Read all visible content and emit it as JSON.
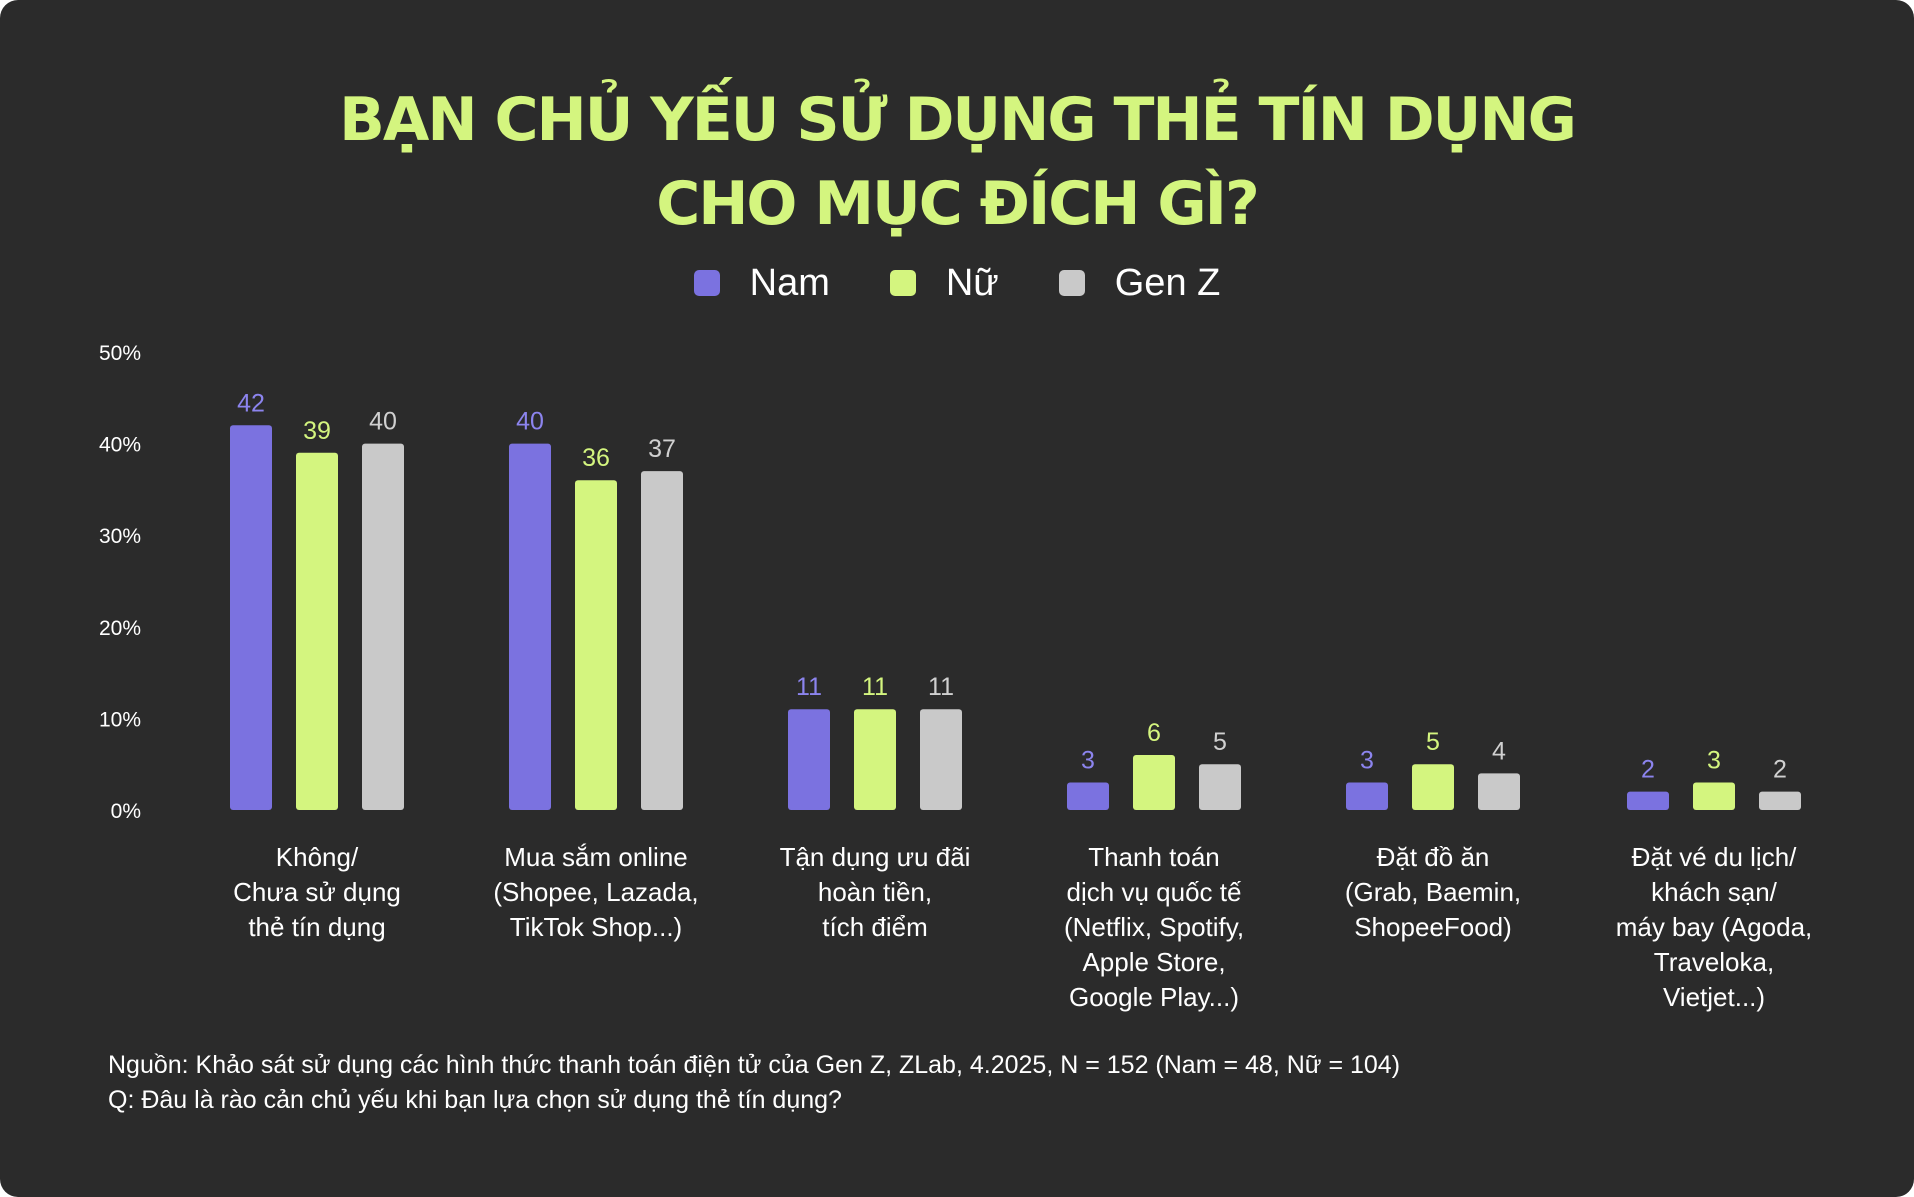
{
  "title_lines": [
    "BẠN CHỦ YẾU SỬ DỤNG THẺ TÍN DỤNG",
    "CHO MỤC ĐÍCH GÌ?"
  ],
  "legend": [
    {
      "label": "Nam",
      "color": "#7b72e0"
    },
    {
      "label": "Nữ",
      "color": "#d4f57f"
    },
    {
      "label": "Gen Z",
      "color": "#c9c9c9"
    }
  ],
  "source_lines": [
    "Nguồn: Khảo sát sử dụng các hình thức thanh toán điện tử của Gen Z, ZLab, 4.2025, N = 152 (Nam = 48, Nữ = 104)",
    "Q: Đâu là rào cản chủ yếu khi bạn lựa chọn sử dụng thẻ tín dụng?"
  ],
  "chart_data": {
    "type": "bar",
    "title": "BẠN CHỦ YẾU SỬ DỤNG THẺ TÍN DỤNG CHO MỤC ĐÍCH GÌ?",
    "ylim": [
      0,
      50
    ],
    "yticks": [
      "0%",
      "10%",
      "20%",
      "30%",
      "40%",
      "50%"
    ],
    "grid": false,
    "legend_position": "top-center",
    "categories": [
      [
        "Không/",
        "Chưa sử dụng",
        "thẻ tín dụng"
      ],
      [
        "Mua sắm online",
        "(Shopee, Lazada,",
        "TikTok Shop...)"
      ],
      [
        "Tận dụng ưu đãi",
        "hoàn tiền,",
        "tích điểm"
      ],
      [
        "Thanh toán",
        "dịch vụ quốc tế",
        "(Netflix, Spotify,",
        "Apple Store,",
        "Google Play...)"
      ],
      [
        "Đặt đồ ăn",
        "(Grab, Baemin,",
        "ShopeeFood)"
      ],
      [
        "Đặt vé du lịch/",
        "khách sạn/",
        "máy bay (Agoda,",
        "Traveloka,",
        "Vietjet...)"
      ]
    ],
    "series": [
      {
        "name": "Nam",
        "color": "#7b72e0",
        "values": [
          42,
          40,
          11,
          3,
          3,
          2
        ]
      },
      {
        "name": "Nữ",
        "color": "#d4f57f",
        "values": [
          39,
          36,
          11,
          6,
          5,
          3
        ]
      },
      {
        "name": "Gen Z",
        "color": "#c9c9c9",
        "values": [
          40,
          37,
          11,
          5,
          4,
          2
        ]
      }
    ]
  }
}
